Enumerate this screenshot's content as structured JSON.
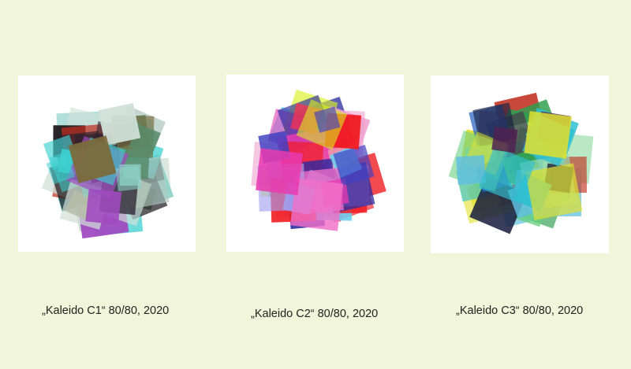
{
  "artworks": [
    {
      "caption": "„Kaleido C1“ 80/80, 2020",
      "palette": [
        "#1a1418",
        "#2a2230",
        "#8fd3c9",
        "#3fd0d0",
        "#a04ac0",
        "#b0c8c0",
        "#7a6a3a",
        "#c03020",
        "#d0e0d8",
        "#5a8a6a"
      ]
    },
    {
      "caption": "„Kaleido C2“ 80/80, 2020",
      "palette": [
        "#f01a20",
        "#e83ab0",
        "#f070c8",
        "#2a2aa0",
        "#6ad0f0",
        "#d8f020",
        "#a0a0f0",
        "#f0a0d0",
        "#4040c0",
        "#ff3050"
      ]
    },
    {
      "caption": "„Kaleido C3“ 80/80, 2020",
      "palette": [
        "#1a2040",
        "#30a050",
        "#6ad080",
        "#30c0d0",
        "#e0e030",
        "#c03020",
        "#2060c0",
        "#a0e0b0",
        "#502050",
        "#60c0e0"
      ]
    }
  ]
}
